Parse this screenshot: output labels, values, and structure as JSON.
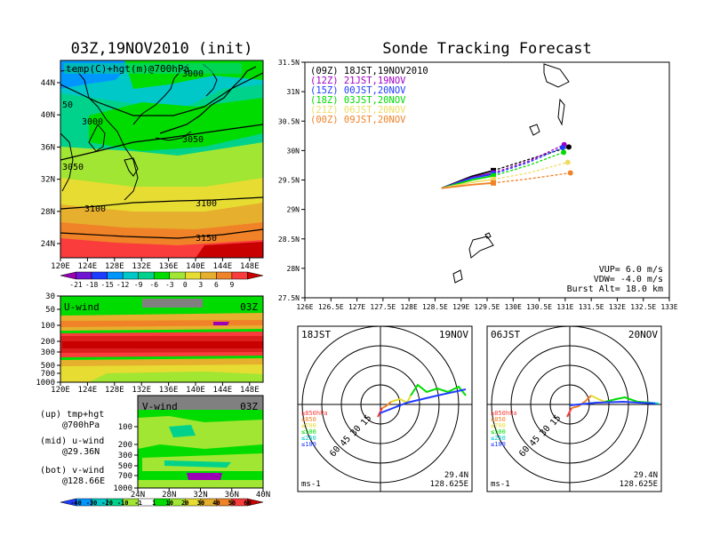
{
  "title_left": "03Z,19NOV2010 (init)",
  "title_right": "Sonde Tracking Forecast",
  "colors": {
    "track_09z": "#000000",
    "track_12z": "#a000c8",
    "track_15z": "#1e3cff",
    "track_18z": "#00dc00",
    "track_21z": "#f0dc64",
    "track_00z": "#f08228"
  },
  "chart_data": [
    {
      "type": "heatmap",
      "name_key": "map_panel",
      "label": "temp(C)+hgt(m)@700hPa",
      "x_ticks": [
        "120E",
        "124E",
        "128E",
        "132E",
        "136E",
        "140E",
        "144E",
        "148E"
      ],
      "y_ticks": [
        "44N",
        "40N",
        "36N",
        "32N",
        "28N",
        "24N"
      ],
      "xlim": [
        120,
        150
      ],
      "ylim": [
        22,
        48
      ],
      "contour_labels": [
        "3000",
        "3000",
        "3050",
        "3050",
        "3100",
        "3100",
        "3150"
      ],
      "colorbar": {
        "labels": [
          "-21",
          "-18",
          "-15",
          "-12",
          "-9",
          "-6",
          "-3",
          "0",
          "3",
          "6",
          "9"
        ],
        "colors": [
          "#9b00b4",
          "#6e14d2",
          "#1e3cff",
          "#0096ff",
          "#00c8c8",
          "#00d28c",
          "#00dc00",
          "#a0e632",
          "#e6dc32",
          "#e6af2d",
          "#f08228",
          "#fa3c3c",
          "#c80000"
        ]
      }
    },
    {
      "type": "heatmap",
      "name_key": "uwind_panel",
      "label": "U-wind",
      "time_label": "03Z",
      "y_ticks": [
        "30",
        "50",
        "100",
        "200",
        "300",
        "500",
        "700",
        "1000"
      ],
      "x_ticks": [
        "120E",
        "124E",
        "128E",
        "132E",
        "136E",
        "140E",
        "144E",
        "148E"
      ]
    },
    {
      "type": "heatmap",
      "name_key": "vwind_panel",
      "label": "V-wind",
      "time_label": "03Z",
      "y_ticks": [
        "100",
        "200",
        "300",
        "500",
        "700",
        "1000"
      ],
      "x_ticks": [
        "24N",
        "28N",
        "32N",
        "36N",
        "40N"
      ],
      "colorbar": {
        "labels": [
          "-40",
          "-30",
          "-20",
          "-10",
          "-1",
          "1",
          "10",
          "20",
          "30",
          "40",
          "50",
          "60"
        ],
        "colors": [
          "#1e3cff",
          "#0096ff",
          "#00c8c8",
          "#00d28c",
          "#a0e632",
          "#ffffff",
          "#00dc00",
          "#a0e632",
          "#e6dc32",
          "#e6af2d",
          "#f08228",
          "#fa3c3c",
          "#c80000"
        ]
      }
    },
    {
      "type": "line",
      "name_key": "track_panel",
      "x_ticks": [
        "126E",
        "126.5E",
        "127E",
        "127.5E",
        "128E",
        "128.5E",
        "129E",
        "129.5E",
        "130E",
        "130.5E",
        "131E",
        "131.5E",
        "132E",
        "132.5E",
        "133E"
      ],
      "y_ticks": [
        "31.5N",
        "31N",
        "30.5N",
        "30N",
        "29.5N",
        "29N",
        "28.5N",
        "28N",
        "27.5N"
      ],
      "xlim": [
        126,
        133
      ],
      "ylim": [
        27.5,
        31.5
      ],
      "start": [
        128.625,
        29.36
      ],
      "series": [
        {
          "name": "(09Z)  18JST,19NOV2010",
          "color_key": "track_09z",
          "x": [
            128.625,
            129.2,
            129.62,
            130.3,
            131.07
          ],
          "y": [
            29.36,
            29.56,
            29.66,
            29.85,
            30.06
          ]
        },
        {
          "name": "(12Z)  21JST,19NOV",
          "color_key": "track_12z",
          "x": [
            128.625,
            129.2,
            129.62,
            130.3,
            130.98
          ],
          "y": [
            29.36,
            29.54,
            29.62,
            29.82,
            30.1
          ]
        },
        {
          "name": "(15Z)  00JST,20NOV",
          "color_key": "track_15z",
          "x": [
            128.625,
            129.2,
            129.62,
            130.3,
            130.95
          ],
          "y": [
            29.36,
            29.53,
            29.6,
            29.8,
            30.05
          ]
        },
        {
          "name": "(18Z)  03JST,20NOV",
          "color_key": "track_18z",
          "x": [
            128.625,
            129.2,
            129.62,
            130.3,
            130.97
          ],
          "y": [
            29.36,
            29.5,
            29.57,
            29.75,
            29.97
          ]
        },
        {
          "name": "(21Z)  06JST,20NOV",
          "color_key": "track_21z",
          "x": [
            128.625,
            129.2,
            129.62,
            130.3,
            131.05
          ],
          "y": [
            29.36,
            29.46,
            29.51,
            29.62,
            29.8
          ]
        },
        {
          "name": "(00Z)  09JST,20NOV",
          "color_key": "track_00z",
          "x": [
            128.625,
            129.2,
            129.62,
            130.3,
            131.1
          ],
          "y": [
            29.36,
            29.42,
            29.45,
            29.52,
            29.62
          ]
        }
      ],
      "params": [
        "VUP=  6.0  m/s",
        "VDW=  -4.0  m/s",
        "Burst Alt=  18.0  km"
      ]
    },
    {
      "type": "line",
      "name_key": "hodo_left",
      "time_label": "18JST",
      "date_label": "19NOV",
      "ring_labels": [
        "15",
        "30",
        "45",
        "60"
      ],
      "unit": "ms-1",
      "latlon": [
        "29.4N",
        "128.625E"
      ],
      "levels": [
        "≥850hPa",
        "≤850",
        "≤700",
        "≤500",
        "≤250",
        "≤100"
      ]
    },
    {
      "type": "line",
      "name_key": "hodo_right",
      "time_label": "06JST",
      "date_label": "20NOV",
      "ring_labels": [
        "15",
        "30",
        "45",
        "60"
      ],
      "unit": "ms-1",
      "latlon": [
        "29.4N",
        "128.625E"
      ],
      "levels": [
        "≥850hPa",
        "≤850",
        "≤700",
        "≤500",
        "≤250",
        "≤100"
      ]
    }
  ],
  "legend_text": {
    "up": "(up) tmp+hgt",
    "up2": "@700hPa",
    "mid": "(mid) u-wind",
    "mid2": "@29.36N",
    "bot": "(bot) v-wind",
    "bot2": "@128.66E"
  }
}
